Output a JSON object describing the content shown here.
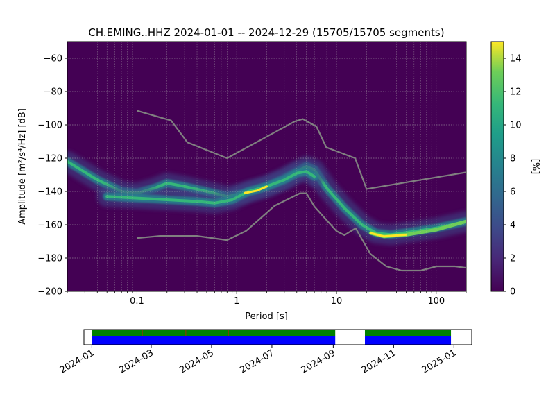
{
  "chart_data": [
    {
      "type": "heatmap",
      "title": "CH.EMING..HHZ   2024-01-01 -- 2024-12-29  (15705/15705 segments)",
      "xlabel": "Period [s]",
      "ylabel": "Amplitude [m²/s⁴/Hz] [dB]",
      "x_scale": "log",
      "xlim": [
        0.02,
        200
      ],
      "ylim": [
        -200,
        -50
      ],
      "xticks": [
        {
          "value": 0.1,
          "label": "0.1"
        },
        {
          "value": 1,
          "label": "1"
        },
        {
          "value": 10,
          "label": "10"
        },
        {
          "value": 100,
          "label": "100"
        }
      ],
      "yticks": [
        -60,
        -80,
        -100,
        -120,
        -140,
        -160,
        -180,
        -200
      ],
      "grid": true,
      "background_color": "#440154",
      "colorbar": {
        "label": "[%]",
        "range": [
          0,
          15
        ],
        "ticks": [
          0,
          2,
          4,
          6,
          8,
          10,
          12,
          14
        ],
        "colormap": "viridis"
      },
      "density_ridges": [
        {
          "branch": "upper",
          "points": [
            [
              0.02,
              -122
            ],
            [
              0.04,
              -133
            ],
            [
              0.07,
              -140
            ],
            [
              0.1,
              -141
            ],
            [
              0.15,
              -138
            ],
            [
              0.2,
              -135
            ],
            [
              0.3,
              -137
            ],
            [
              0.5,
              -140
            ],
            [
              0.8,
              -143
            ],
            [
              1.2,
              -141
            ],
            [
              2,
              -137
            ],
            [
              3,
              -132
            ],
            [
              4,
              -128
            ],
            [
              5,
              -125
            ],
            [
              6,
              -127
            ],
            [
              8,
              -138
            ],
            [
              12,
              -150
            ],
            [
              18,
              -160
            ],
            [
              25,
              -165
            ],
            [
              35,
              -166
            ],
            [
              60,
              -164
            ],
            [
              100,
              -162
            ],
            [
              200,
              -158
            ]
          ],
          "peak_percent": 10
        },
        {
          "branch": "lower",
          "points": [
            [
              0.05,
              -143
            ],
            [
              0.1,
              -144
            ],
            [
              0.2,
              -145
            ],
            [
              0.4,
              -146
            ],
            [
              0.6,
              -147
            ],
            [
              0.9,
              -145
            ],
            [
              1.3,
              -140
            ],
            [
              2,
              -137
            ],
            [
              3,
              -133
            ],
            [
              4,
              -129
            ],
            [
              5,
              -128
            ],
            [
              6,
              -131
            ]
          ],
          "peak_percent": 12
        }
      ],
      "peak_zone": {
        "x_range": [
          22,
          200
        ],
        "points": [
          [
            22,
            -165
          ],
          [
            30,
            -167
          ],
          [
            50,
            -166
          ],
          [
            100,
            -163
          ],
          [
            200,
            -158
          ]
        ],
        "peak_percent": 14
      },
      "noise_models": [
        {
          "name": "NHNM",
          "color": "#808080",
          "points": [
            [
              0.1,
              -91.5
            ],
            [
              0.22,
              -97.4
            ],
            [
              0.32,
              -110.5
            ],
            [
              0.8,
              -120
            ],
            [
              3.8,
              -98
            ],
            [
              4.6,
              -96.5
            ],
            [
              6.3,
              -101
            ],
            [
              7.9,
              -113.5
            ],
            [
              15.4,
              -120
            ],
            [
              20,
              -138.5
            ],
            [
              354.8,
              -126
            ]
          ]
        },
        {
          "name": "NLNM",
          "color": "#808080",
          "points": [
            [
              0.1,
              -168
            ],
            [
              0.17,
              -166.7
            ],
            [
              0.4,
              -166.7
            ],
            [
              0.8,
              -169.2
            ],
            [
              1.24,
              -163.7
            ],
            [
              2.4,
              -148.6
            ],
            [
              4.3,
              -141.1
            ],
            [
              5,
              -141.1
            ],
            [
              6,
              -149
            ],
            [
              10,
              -163.8
            ],
            [
              12,
              -166.2
            ],
            [
              15.6,
              -162.1
            ],
            [
              21.9,
              -177.5
            ],
            [
              31.6,
              -185
            ],
            [
              45,
              -187.5
            ],
            [
              70,
              -187.5
            ],
            [
              101,
              -185
            ],
            [
              154,
              -185
            ],
            [
              328,
              -187.5
            ]
          ]
        }
      ]
    },
    {
      "type": "timeline",
      "x_tick_labels": [
        "2024-01",
        "2024-03",
        "2024-05",
        "2024-07",
        "2024-09",
        "2024-11",
        "2025-01"
      ],
      "xlim": [
        "2023-12-24",
        "2025-01-19"
      ],
      "coverage": [
        {
          "start": "2024-01-01",
          "end": "2024-09-03"
        },
        {
          "start": "2024-10-03",
          "end": "2024-12-29"
        }
      ],
      "coverage_colors": {
        "data": "#0000ff",
        "used": "#008000",
        "gaps": "#ff0000"
      },
      "gap_marks": [
        "2024-02-21",
        "2024-04-05",
        "2024-05-18"
      ]
    }
  ]
}
